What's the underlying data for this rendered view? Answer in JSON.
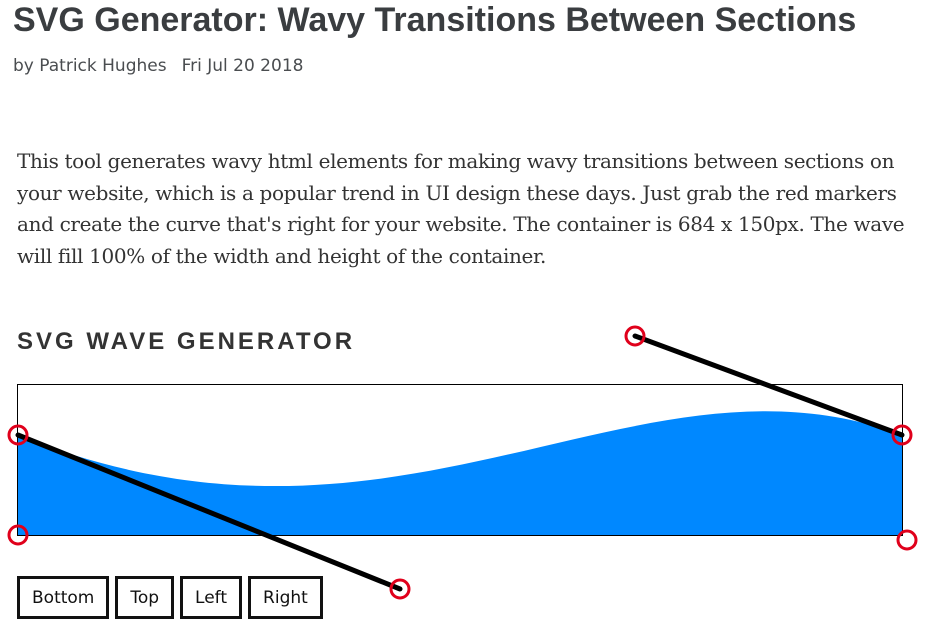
{
  "article": {
    "title": "SVG Generator: Wavy Transitions Between Sections",
    "byline": "by Patrick Hughes",
    "date": "Fri Jul 20 2018",
    "intro": "This tool generates wavy html elements for making wavy transitions between sections on your website, which is a popular trend in UI design these days. Just grab the red markers and create the curve that's right for your website. The container is 684 x 150px. The wave will fill 100% of the width and height of the container."
  },
  "generator": {
    "heading": "SVG WAVE GENERATOR",
    "wave_color": "#0088ff",
    "marker_color": "#e0001b",
    "handle_line_color": "#000000",
    "buttons": {
      "bottom": "Bottom",
      "top": "Top",
      "left": "Left",
      "right": "Right"
    }
  }
}
